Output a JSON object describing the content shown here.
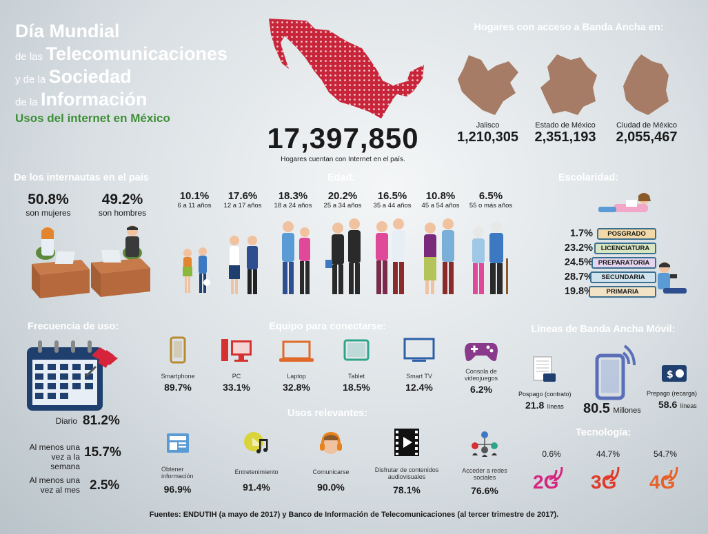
{
  "title": {
    "line1_big": "Día Mundial",
    "line2_small": "de las",
    "line2_big": "Telecomunicaciones",
    "line3_small": "y de la",
    "line3_big": "Sociedad",
    "line4_small": "de la",
    "line4_big": "Información",
    "subtitle": "Usos del internet en México"
  },
  "households": {
    "total": "17,397,850",
    "caption": "Hogares cuentan con Internet en el país."
  },
  "broadband": {
    "title": "Hogares con acceso a Banda Ancha en:",
    "states": [
      {
        "name": "Jalisco",
        "value": "1,210,305"
      },
      {
        "name": "Estado de México",
        "value": "2,351,193"
      },
      {
        "name": "Ciudad de México",
        "value": "2,055,467"
      }
    ]
  },
  "internautas": {
    "title": "De los internautas en el país",
    "women_pct": "50.8%",
    "women_label": "son mujeres",
    "men_pct": "49.2%",
    "men_label": "son hombres"
  },
  "age": {
    "title": "Edad:",
    "groups": [
      {
        "pct": "10.1%",
        "label": "6 a 11 años"
      },
      {
        "pct": "17.6%",
        "label": "12 a 17 años"
      },
      {
        "pct": "18.3%",
        "label": "18 a 24 años"
      },
      {
        "pct": "20.2%",
        "label": "25 a 34 años"
      },
      {
        "pct": "16.5%",
        "label": "35 a 44 años"
      },
      {
        "pct": "10.8%",
        "label": "45 a 54 años"
      },
      {
        "pct": "6.5%",
        "label": "55 o más años"
      }
    ]
  },
  "schooling": {
    "title": "Escolaridad:",
    "levels": [
      {
        "pct": "1.7%",
        "label": "POSGRADO"
      },
      {
        "pct": "23.2%",
        "label": "LICENCIATURA"
      },
      {
        "pct": "24.5%",
        "label": "PREPARATORIA"
      },
      {
        "pct": "28.7%",
        "label": "SECUNDARIA"
      },
      {
        "pct": "19.8%",
        "label": "PRIMARIA"
      }
    ]
  },
  "frequency": {
    "title": "Frecuencia de uso:",
    "items": [
      {
        "label": "Diario",
        "pct": "81.2%"
      },
      {
        "label": "Al menos una vez a la semana",
        "pct": "15.7%"
      },
      {
        "label": "Al menos una vez al mes",
        "pct": "2.5%"
      }
    ]
  },
  "devices": {
    "title": "Equipo para conectarse:",
    "items": [
      {
        "label": "Smartphone",
        "pct": "89.7%",
        "icon": "smartphone-icon",
        "color": "#b88a2e"
      },
      {
        "label": "PC",
        "pct": "33.1%",
        "icon": "pc-icon",
        "color": "#d63030"
      },
      {
        "label": "Laptop",
        "pct": "32.8%",
        "icon": "laptop-icon",
        "color": "#e06a2a"
      },
      {
        "label": "Tablet",
        "pct": "18.5%",
        "icon": "tablet-icon",
        "color": "#2ea58a"
      },
      {
        "label": "Smart TV",
        "pct": "12.4%",
        "icon": "smart-tv-icon",
        "color": "#2d5fa8"
      },
      {
        "label": "Consola de videojuegos",
        "pct": "6.2%",
        "icon": "game-controller-icon",
        "color": "#8a3a8a"
      }
    ]
  },
  "uses": {
    "title": "Usos relevantes:",
    "items": [
      {
        "label": "Obtener información",
        "pct": "96.9%",
        "icon": "news-icon"
      },
      {
        "label": "Entretenimiento",
        "pct": "91.4%",
        "icon": "music-icon"
      },
      {
        "label": "Comunicarse",
        "pct": "90.0%",
        "icon": "headset-icon"
      },
      {
        "label": "Disfrutar de contenidos audiovisuales",
        "pct": "78.1%",
        "icon": "film-icon"
      },
      {
        "label": "Acceder a redes sociales",
        "pct": "76.6%",
        "icon": "social-network-icon"
      }
    ]
  },
  "mobile": {
    "title": "Líneas de Banda Ancha Móvil:",
    "postpaid_label": "Pospago (contrato)",
    "postpaid_value": "21.8",
    "postpaid_unit": "líneas",
    "total_value": "80.5",
    "total_unit": "Millones",
    "prepaid_label": "Prepago (recarga)",
    "prepaid_value": "58.6",
    "prepaid_unit": "líneas"
  },
  "technology": {
    "title": "Tecnología:",
    "items": [
      {
        "pct": "0.6%",
        "label": "2G",
        "color": "#d6257e"
      },
      {
        "pct": "44.7%",
        "label": "3G",
        "color": "#e03a2a"
      },
      {
        "pct": "54.7%",
        "label": "4G",
        "color": "#e8612a"
      }
    ]
  },
  "sources": "Fuentes: ENDUTIH (a mayo de 2017) y Banco de Información de Telecomunicaciones (al tercer trimestre de 2017)."
}
